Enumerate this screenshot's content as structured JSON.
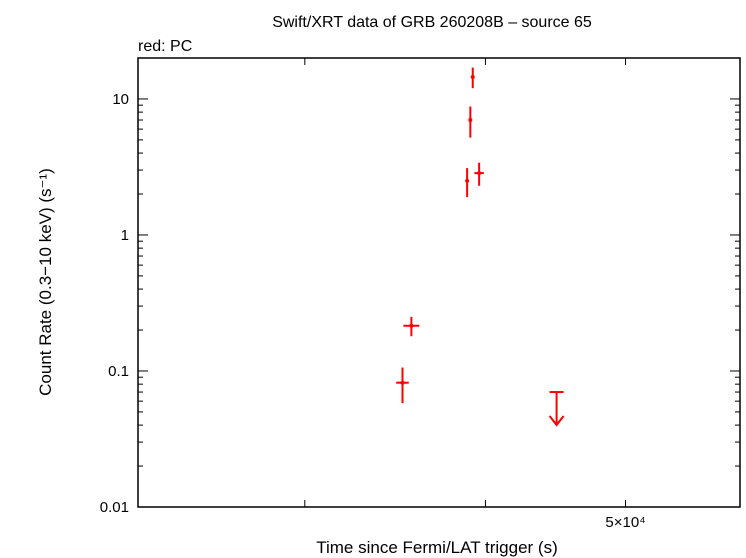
{
  "chart_data": {
    "type": "scatter",
    "title": "Swift/XRT data of GRB 260208B – source 65",
    "subtitle": "red: PC",
    "xlabel": "Time since Fermi/LAT trigger (s)",
    "ylabel": "Count Rate (0.3−10 keV) (s⁻¹)",
    "x_scale": "log",
    "y_scale": "log",
    "xlim": [
      23000,
      60000
    ],
    "ylim": [
      0.01,
      20
    ],
    "x_ticks": [
      {
        "value": 30000,
        "label": ""
      },
      {
        "value": 40000,
        "label": ""
      },
      {
        "value": 50000,
        "label": "5×10⁴"
      }
    ],
    "y_ticks": [
      {
        "value": 0.01,
        "label": "0.01"
      },
      {
        "value": 0.1,
        "label": "0.1"
      },
      {
        "value": 1,
        "label": "1"
      },
      {
        "value": 10,
        "label": "10"
      }
    ],
    "grid": false,
    "legend": "none",
    "color": "#ff0000",
    "series": [
      {
        "points": [
          {
            "x": 35050,
            "xerr": [
              350,
              350
            ],
            "y": 0.082,
            "yerr": [
              0.024,
              0.024
            ]
          },
          {
            "x": 35550,
            "xerr": [
              450,
              450
            ],
            "y": 0.215,
            "yerr": [
              0.035,
              0.035
            ]
          },
          {
            "x": 38850,
            "xerr": [
              100,
              100
            ],
            "y": 2.5,
            "yerr": [
              0.6,
              0.6
            ]
          },
          {
            "x": 39050,
            "xerr": [
              50,
              50
            ],
            "y": 7.0,
            "yerr": [
              1.8,
              1.8
            ]
          },
          {
            "x": 39200,
            "xerr": [
              50,
              50
            ],
            "y": 14.5,
            "yerr": [
              2.5,
              2.5
            ]
          },
          {
            "x": 39600,
            "xerr": [
              300,
              300
            ],
            "y": 2.85,
            "yerr": [
              0.55,
              0.55
            ]
          }
        ],
        "upper_limits": [
          {
            "x": 44800,
            "xerr": [
              500,
              500
            ],
            "y": 0.07
          }
        ]
      }
    ]
  }
}
